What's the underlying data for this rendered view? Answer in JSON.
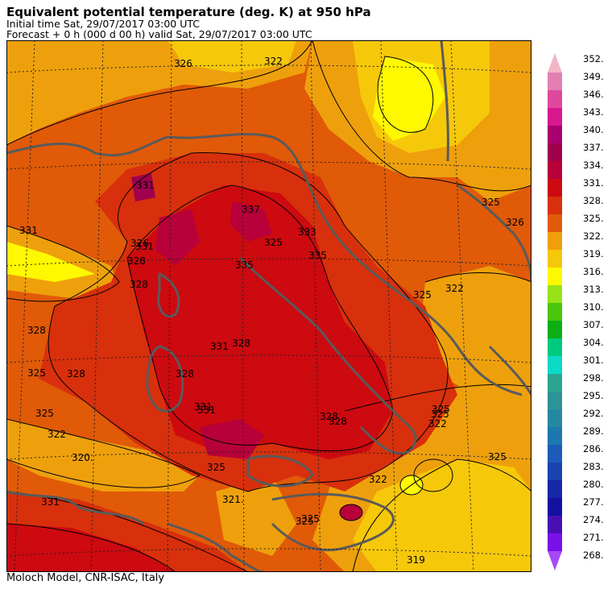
{
  "header": {
    "title": "Equivalent potential temperature (deg. K) at 950 hPa",
    "initial_time": "Initial time  Sat, 29/07/2017  03:00 UTC",
    "forecast": "Forecast  +   0 h  (000 d 00 h)  valid Sat, 29/07/2017 03:00 UTC"
  },
  "footer": {
    "credit": "Moloch Model, CNR-ISAC, Italy"
  },
  "colorbar": {
    "labels": [
      "352.",
      "349.",
      "346.",
      "343.",
      "340.",
      "337.",
      "334.",
      "331.",
      "328.",
      "325.",
      "322.",
      "319.",
      "316.",
      "313.",
      "310.",
      "307.",
      "304.",
      "301.",
      "298.",
      "295.",
      "292.",
      "289.",
      "286.",
      "283.",
      "280.",
      "277.",
      "274.",
      "271.",
      "268."
    ],
    "colors": [
      "#f4b6c6",
      "#e47fb4",
      "#e0489e",
      "#d8178e",
      "#a8006e",
      "#a0004e",
      "#b8003a",
      "#cc0a10",
      "#d8300c",
      "#e05a08",
      "#eea00c",
      "#f6c80a",
      "#fef800",
      "#98e218",
      "#4cc60a",
      "#0cae14",
      "#00ca80",
      "#0cdac8",
      "#2aa690",
      "#2c9496",
      "#2488a2",
      "#1e78b0",
      "#1c5cb8",
      "#1842b0",
      "#1428a8",
      "#1410a0",
      "#4810b4",
      "#7a10e8",
      "#a848f6"
    ]
  },
  "map": {
    "contour_labels": [
      {
        "t": "322"
      },
      {
        "t": "326"
      },
      {
        "t": "331"
      },
      {
        "t": "328"
      },
      {
        "t": "328"
      },
      {
        "t": "331"
      },
      {
        "t": "337"
      },
      {
        "t": "333"
      },
      {
        "t": "335"
      },
      {
        "t": "335"
      },
      {
        "t": "325"
      },
      {
        "t": "325"
      },
      {
        "t": "328"
      },
      {
        "t": "328"
      },
      {
        "t": "331"
      },
      {
        "t": "328"
      },
      {
        "t": "322"
      },
      {
        "t": "325"
      },
      {
        "t": "325"
      },
      {
        "t": "322"
      },
      {
        "t": "320."
      },
      {
        "t": "331"
      },
      {
        "t": "328"
      },
      {
        "t": "331"
      },
      {
        "t": "326"
      },
      {
        "t": "325"
      },
      {
        "t": "321."
      },
      {
        "t": "331"
      },
      {
        "t": "325"
      },
      {
        "t": "322"
      },
      {
        "t": "325"
      },
      {
        "t": "325"
      },
      {
        "t": "319"
      },
      {
        "t": "325"
      },
      {
        "t": "322"
      },
      {
        "t": "325"
      },
      {
        "t": "331"
      },
      {
        "t": "328"
      },
      {
        "t": "325"
      },
      {
        "t": "326"
      },
      {
        "t": "328"
      }
    ]
  }
}
